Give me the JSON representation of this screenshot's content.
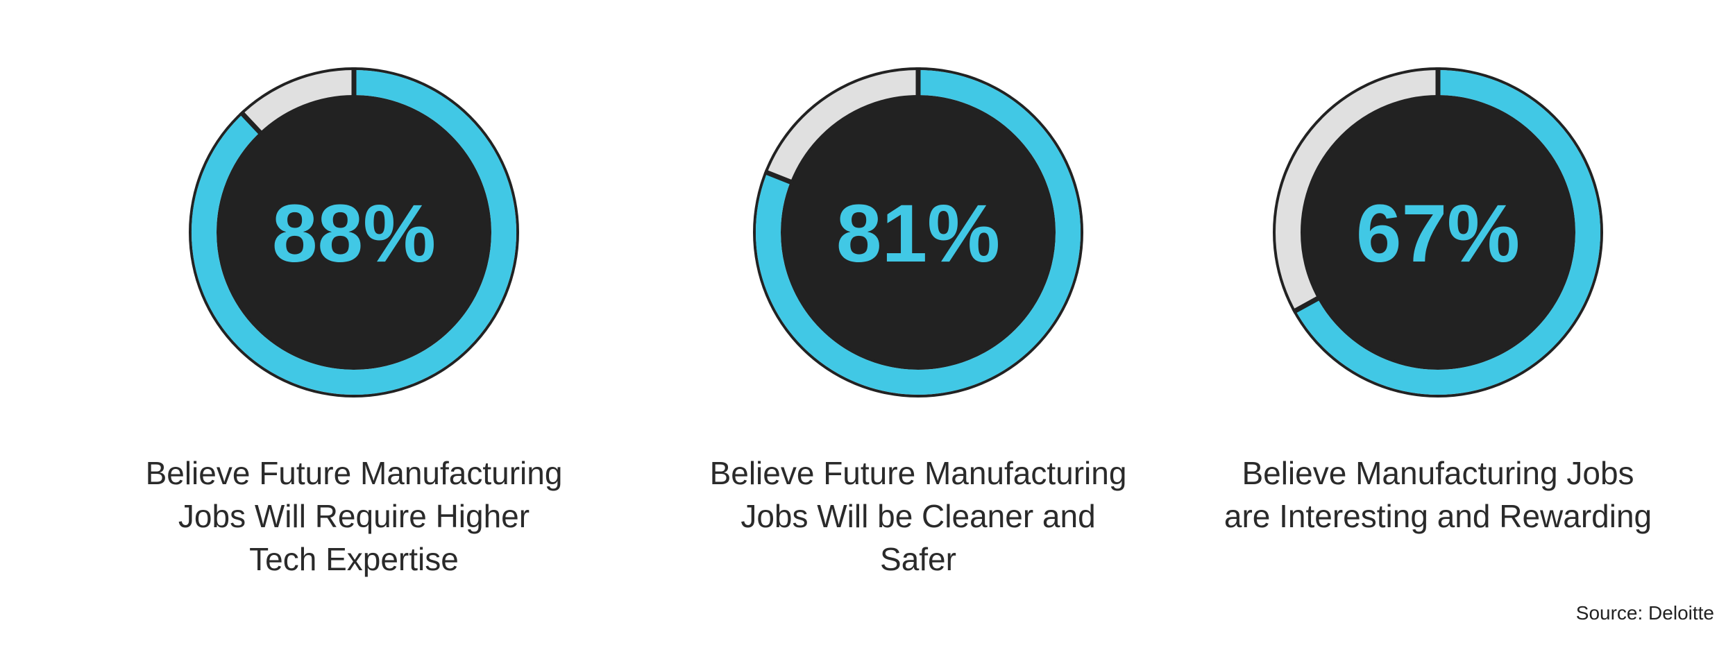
{
  "chart_data": [
    {
      "type": "donut",
      "title_lines": [
        "Believe Future Manufacturing",
        "Jobs Will Require Higher",
        "Tech Expertise"
      ],
      "values": [
        88
      ],
      "value_labels": [
        "88%"
      ],
      "color": "#41c8e5",
      "track_color": "#e0e0e0",
      "center_color": "#222222"
    },
    {
      "type": "donut",
      "title_lines": [
        "Believe Future Manufacturing",
        "Jobs Will be Cleaner and",
        "Safer"
      ],
      "values": [
        81
      ],
      "value_labels": [
        "81%"
      ],
      "color": "#41c8e5",
      "track_color": "#e0e0e0",
      "center_color": "#222222"
    },
    {
      "type": "donut",
      "title_lines": [
        "Believe Manufacturing Jobs",
        "are Interesting and Rewarding"
      ],
      "values": [
        67
      ],
      "value_labels": [
        "67%"
      ],
      "color": "#41c8e5",
      "track_color": "#e0e0e0",
      "center_color": "#222222"
    }
  ],
  "source": "Source: Deloitte"
}
